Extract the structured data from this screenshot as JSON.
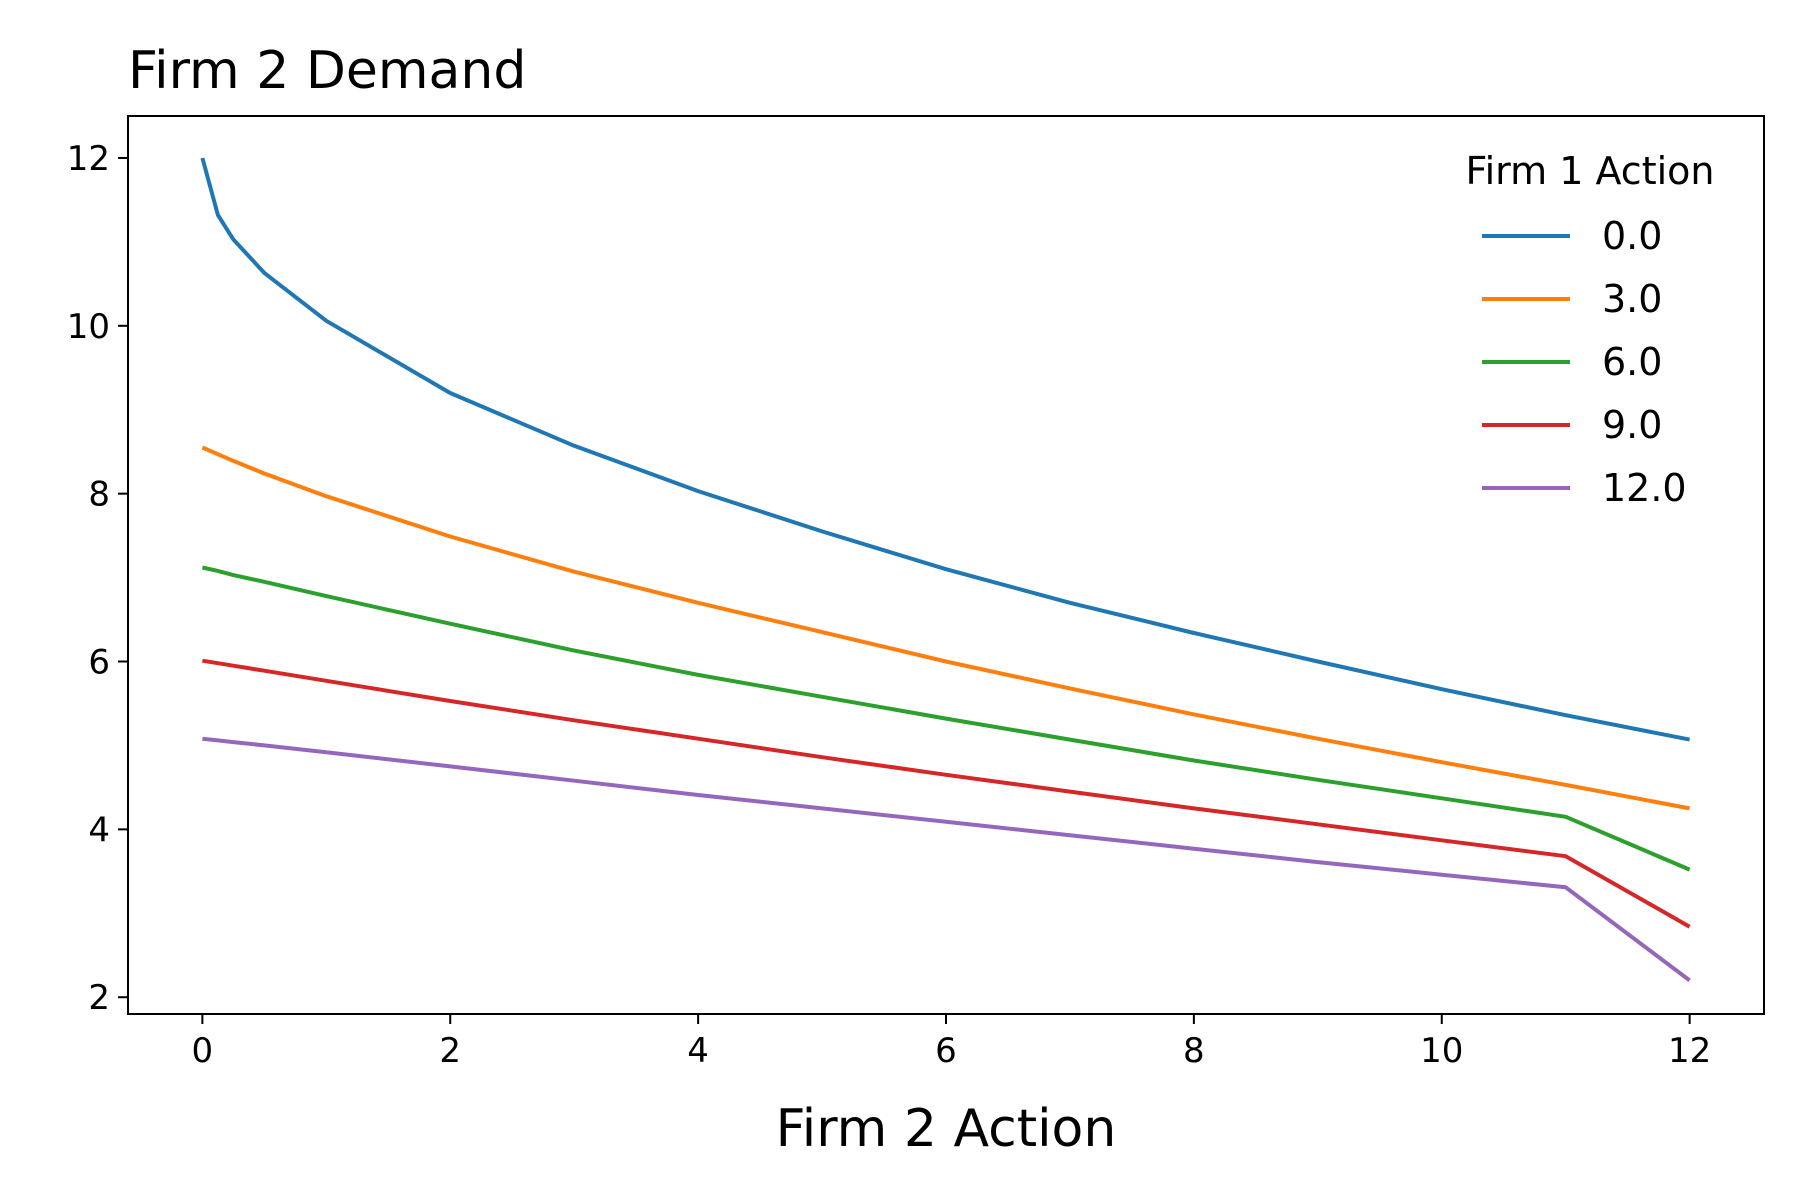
{
  "chart_data": {
    "type": "line",
    "title": "Firm 2 Demand",
    "xlabel": "Firm 2 Action",
    "ylabel": "",
    "xlim": [
      -0.6,
      12.6
    ],
    "ylim": [
      1.8,
      12.5
    ],
    "xticks": [
      0,
      2,
      4,
      6,
      8,
      10,
      12
    ],
    "xtick_labels": [
      "0",
      "2",
      "4",
      "6",
      "8",
      "10",
      "12"
    ],
    "yticks": [
      2,
      4,
      6,
      8,
      10,
      12
    ],
    "ytick_labels": [
      "2",
      "4",
      "6",
      "8",
      "10",
      "12"
    ],
    "grid": false,
    "legend": {
      "title": "Firm 1 Action",
      "placement": "top-right",
      "frame": false
    },
    "x": [
      0,
      0.125,
      0.25,
      0.5,
      1,
      2,
      3,
      4,
      5,
      6,
      7,
      8,
      9,
      10,
      11,
      12
    ],
    "series": [
      {
        "name": "0.0",
        "color": "#1f77b4",
        "values": [
          12.0,
          11.32,
          11.03,
          10.63,
          10.06,
          9.2,
          8.57,
          8.03,
          7.55,
          7.1,
          6.7,
          6.34,
          6.0,
          5.67,
          5.36,
          5.07
        ]
      },
      {
        "name": "3.0",
        "color": "#ff7f0e",
        "values": [
          8.55,
          8.47,
          8.39,
          8.24,
          7.97,
          7.49,
          7.07,
          6.7,
          6.35,
          6.0,
          5.68,
          5.37,
          5.08,
          4.8,
          4.53,
          4.25
        ]
      },
      {
        "name": "6.0",
        "color": "#2ca02c",
        "values": [
          7.12,
          7.08,
          7.03,
          6.95,
          6.78,
          6.45,
          6.13,
          5.84,
          5.58,
          5.32,
          5.07,
          4.82,
          4.59,
          4.37,
          4.15,
          3.52
        ]
      },
      {
        "name": "9.0",
        "color": "#d62728",
        "values": [
          6.01,
          5.98,
          5.95,
          5.89,
          5.77,
          5.53,
          5.3,
          5.08,
          4.86,
          4.65,
          4.45,
          4.25,
          4.06,
          3.87,
          3.68,
          2.84
        ]
      },
      {
        "name": "12.0",
        "color": "#9467bd",
        "values": [
          5.08,
          5.06,
          5.04,
          5.0,
          4.92,
          4.75,
          4.58,
          4.41,
          4.25,
          4.09,
          3.93,
          3.77,
          3.61,
          3.46,
          3.31,
          2.2
        ]
      }
    ]
  }
}
